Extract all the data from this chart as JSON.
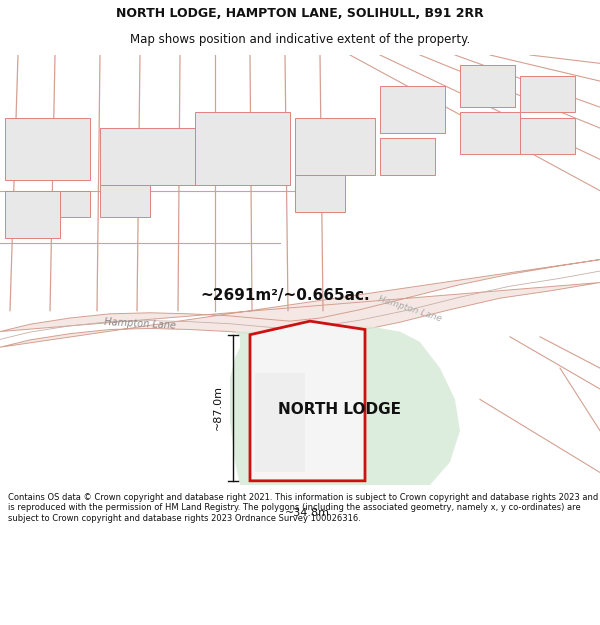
{
  "title": "NORTH LODGE, HAMPTON LANE, SOLIHULL, B91 2RR",
  "subtitle": "Map shows position and indicative extent of the property.",
  "area_text": "~2691m²/~0.665ac.",
  "property_label": "NORTH LODGE",
  "dim_height": "~87.0m",
  "dim_width": "~34.8m",
  "footer": "Contains OS data © Crown copyright and database right 2021. This information is subject to Crown copyright and database rights 2023 and is reproduced with the permission of HM Land Registry. The polygons (including the associated geometry, namely x, y co-ordinates) are subject to Crown copyright and database rights 2023 Ordnance Survey 100026316.",
  "map_bg": "#ffffff",
  "road_fill": "#f5e8e4",
  "road_stroke": "#d4a090",
  "road_center_stroke": "#c8b0a8",
  "building_fill": "#e8e8e8",
  "building_stroke": "#c8c8c8",
  "building_redline": "#e08080",
  "property_fill": "#deeede",
  "property_stroke": "#cc1111",
  "green_area_fill": "#d8ead8",
  "dim_color": "#111111",
  "title_color": "#111111",
  "footer_color": "#111111",
  "title_fontsize": 9,
  "subtitle_fontsize": 8.5,
  "area_fontsize": 11,
  "label_fontsize": 11,
  "dim_fontsize": 8,
  "footer_fontsize": 6.0
}
